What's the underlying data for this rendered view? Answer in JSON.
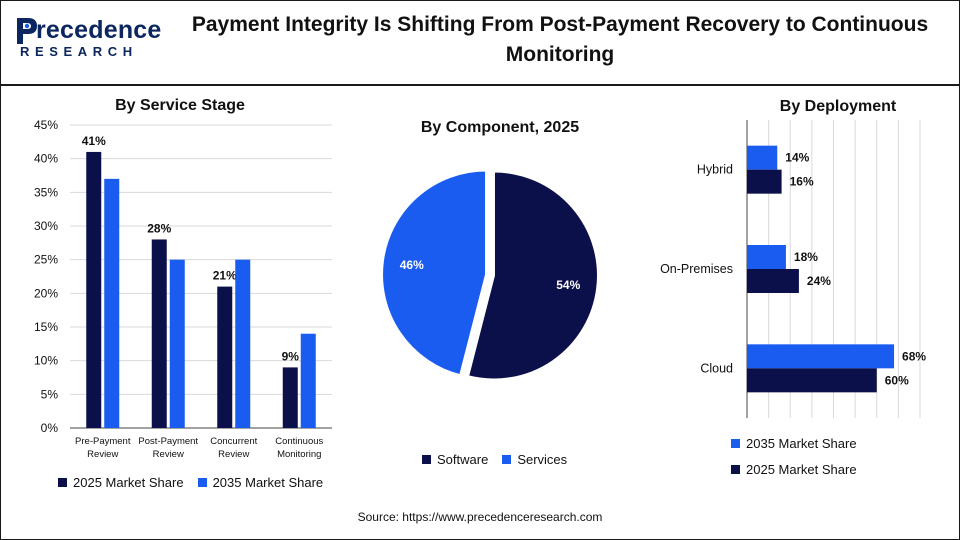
{
  "header": {
    "logo_word": "recedence",
    "logo_sub": "RESEARCH",
    "title_line1": "Payment Integrity Is Shifting From Post-Payment Recovery to Continuous",
    "title_line2": "Monitoring"
  },
  "source": "Source: https://www.precedenceresearch.com",
  "colors": {
    "dark": "#0b0f4a",
    "bright": "#1a5cf0"
  },
  "chart_data": [
    {
      "type": "bar",
      "title": "By Service Stage",
      "categories": [
        [
          "Pre-Payment",
          "Review"
        ],
        [
          "Post-Payment",
          "Review"
        ],
        [
          "Concurrent",
          "Review"
        ],
        [
          "Continuous",
          "Monitoring"
        ]
      ],
      "series": [
        {
          "name": "2025 Market Share",
          "values": [
            41,
            28,
            21,
            9
          ],
          "color": "#0b0f4a",
          "labels": [
            "41%",
            "28%",
            "21%",
            "9%"
          ]
        },
        {
          "name": "2035 Market Share",
          "values": [
            37,
            25,
            25,
            14
          ],
          "color": "#1a5cf0"
        }
      ],
      "ylim": [
        0,
        45
      ],
      "yticks": [
        "0%",
        "5%",
        "10%",
        "15%",
        "20%",
        "25%",
        "30%",
        "35%",
        "40%",
        "45%"
      ],
      "grid": true,
      "legend": "bottom"
    },
    {
      "type": "pie",
      "title": "By Component, 2025",
      "slices": [
        {
          "name": "Software",
          "value": 54,
          "label": "54%",
          "color": "#0b0f4a"
        },
        {
          "name": "Services",
          "value": 46,
          "label": "46%",
          "color": "#1a5cf0"
        }
      ],
      "legend": "bottom"
    },
    {
      "type": "bar",
      "orientation": "horizontal",
      "title": "By Deployment",
      "categories": [
        "Hybrid",
        "On-Premises",
        "Cloud"
      ],
      "series": [
        {
          "name": "2035 Market Share",
          "values": [
            14,
            18,
            68
          ],
          "labels": [
            "14%",
            "18%",
            "68%"
          ],
          "color": "#1a5cf0"
        },
        {
          "name": "2025 Market Share",
          "values": [
            16,
            24,
            60
          ],
          "labels": [
            "16%",
            "24%",
            "60%"
          ],
          "color": "#0b0f4a"
        }
      ],
      "xlim": [
        0,
        80
      ],
      "grid": true,
      "legend": "bottom"
    }
  ]
}
